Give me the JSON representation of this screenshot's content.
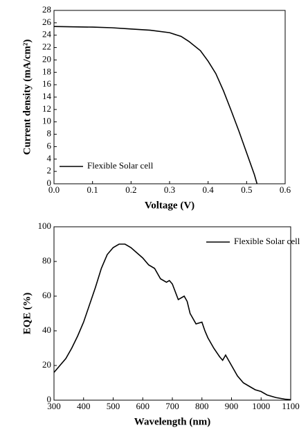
{
  "chart_data": [
    {
      "type": "line",
      "xlabel": "Voltage (V)",
      "ylabel": "Current density (mA/cm²)",
      "x": [
        0,
        0.05,
        0.1,
        0.15,
        0.2,
        0.25,
        0.3,
        0.33,
        0.35,
        0.38,
        0.4,
        0.42,
        0.44,
        0.46,
        0.48,
        0.5,
        0.52,
        0.527
      ],
      "series": [
        {
          "name": "Flexible Solar cell",
          "color": "#000000",
          "values": [
            25.4,
            25.35,
            25.3,
            25.2,
            25.0,
            24.8,
            24.4,
            23.8,
            23.0,
            21.5,
            19.8,
            17.8,
            15.0,
            11.8,
            8.5,
            5.0,
            1.5,
            0
          ]
        }
      ],
      "xlim": [
        0,
        0.6
      ],
      "ylim": [
        0,
        28
      ],
      "xticks": [
        {
          "value": 0,
          "label": "0.0"
        },
        0.1,
        0.2,
        0.3,
        0.4,
        0.5,
        0.6
      ],
      "yticks": [
        0,
        2,
        4,
        6,
        8,
        10,
        12,
        14,
        16,
        18,
        20,
        22,
        24,
        26,
        28
      ],
      "legend": "lower left"
    },
    {
      "type": "line",
      "xlabel": "Wavelength (nm)",
      "ylabel": "EQE (%)",
      "x": [
        300,
        310,
        320,
        340,
        360,
        380,
        400,
        420,
        440,
        460,
        480,
        500,
        520,
        540,
        560,
        580,
        600,
        620,
        640,
        660,
        680,
        690,
        700,
        720,
        740,
        750,
        760,
        780,
        800,
        810,
        820,
        840,
        860,
        870,
        880,
        900,
        920,
        940,
        960,
        980,
        1000,
        1020,
        1050,
        1080,
        1100
      ],
      "series": [
        {
          "name": "Flexible Solar cell",
          "color": "#000000",
          "values": [
            16,
            18,
            20,
            24,
            30,
            37,
            45,
            55,
            65,
            76,
            84,
            88,
            90,
            90,
            88,
            85,
            82,
            78,
            76,
            70,
            68,
            69,
            67,
            58,
            60,
            57,
            50,
            44,
            45,
            40,
            36,
            30,
            25,
            23,
            26,
            20,
            14,
            10,
            8,
            6,
            5,
            3,
            1.5,
            0.6,
            0.3
          ]
        }
      ],
      "xlim": [
        300,
        1100
      ],
      "ylim": [
        0,
        100
      ],
      "xticks": [
        300,
        400,
        500,
        600,
        700,
        800,
        900,
        1000,
        1100
      ],
      "yticks": [
        0,
        20,
        40,
        60,
        80,
        100
      ],
      "legend": "upper right"
    }
  ]
}
